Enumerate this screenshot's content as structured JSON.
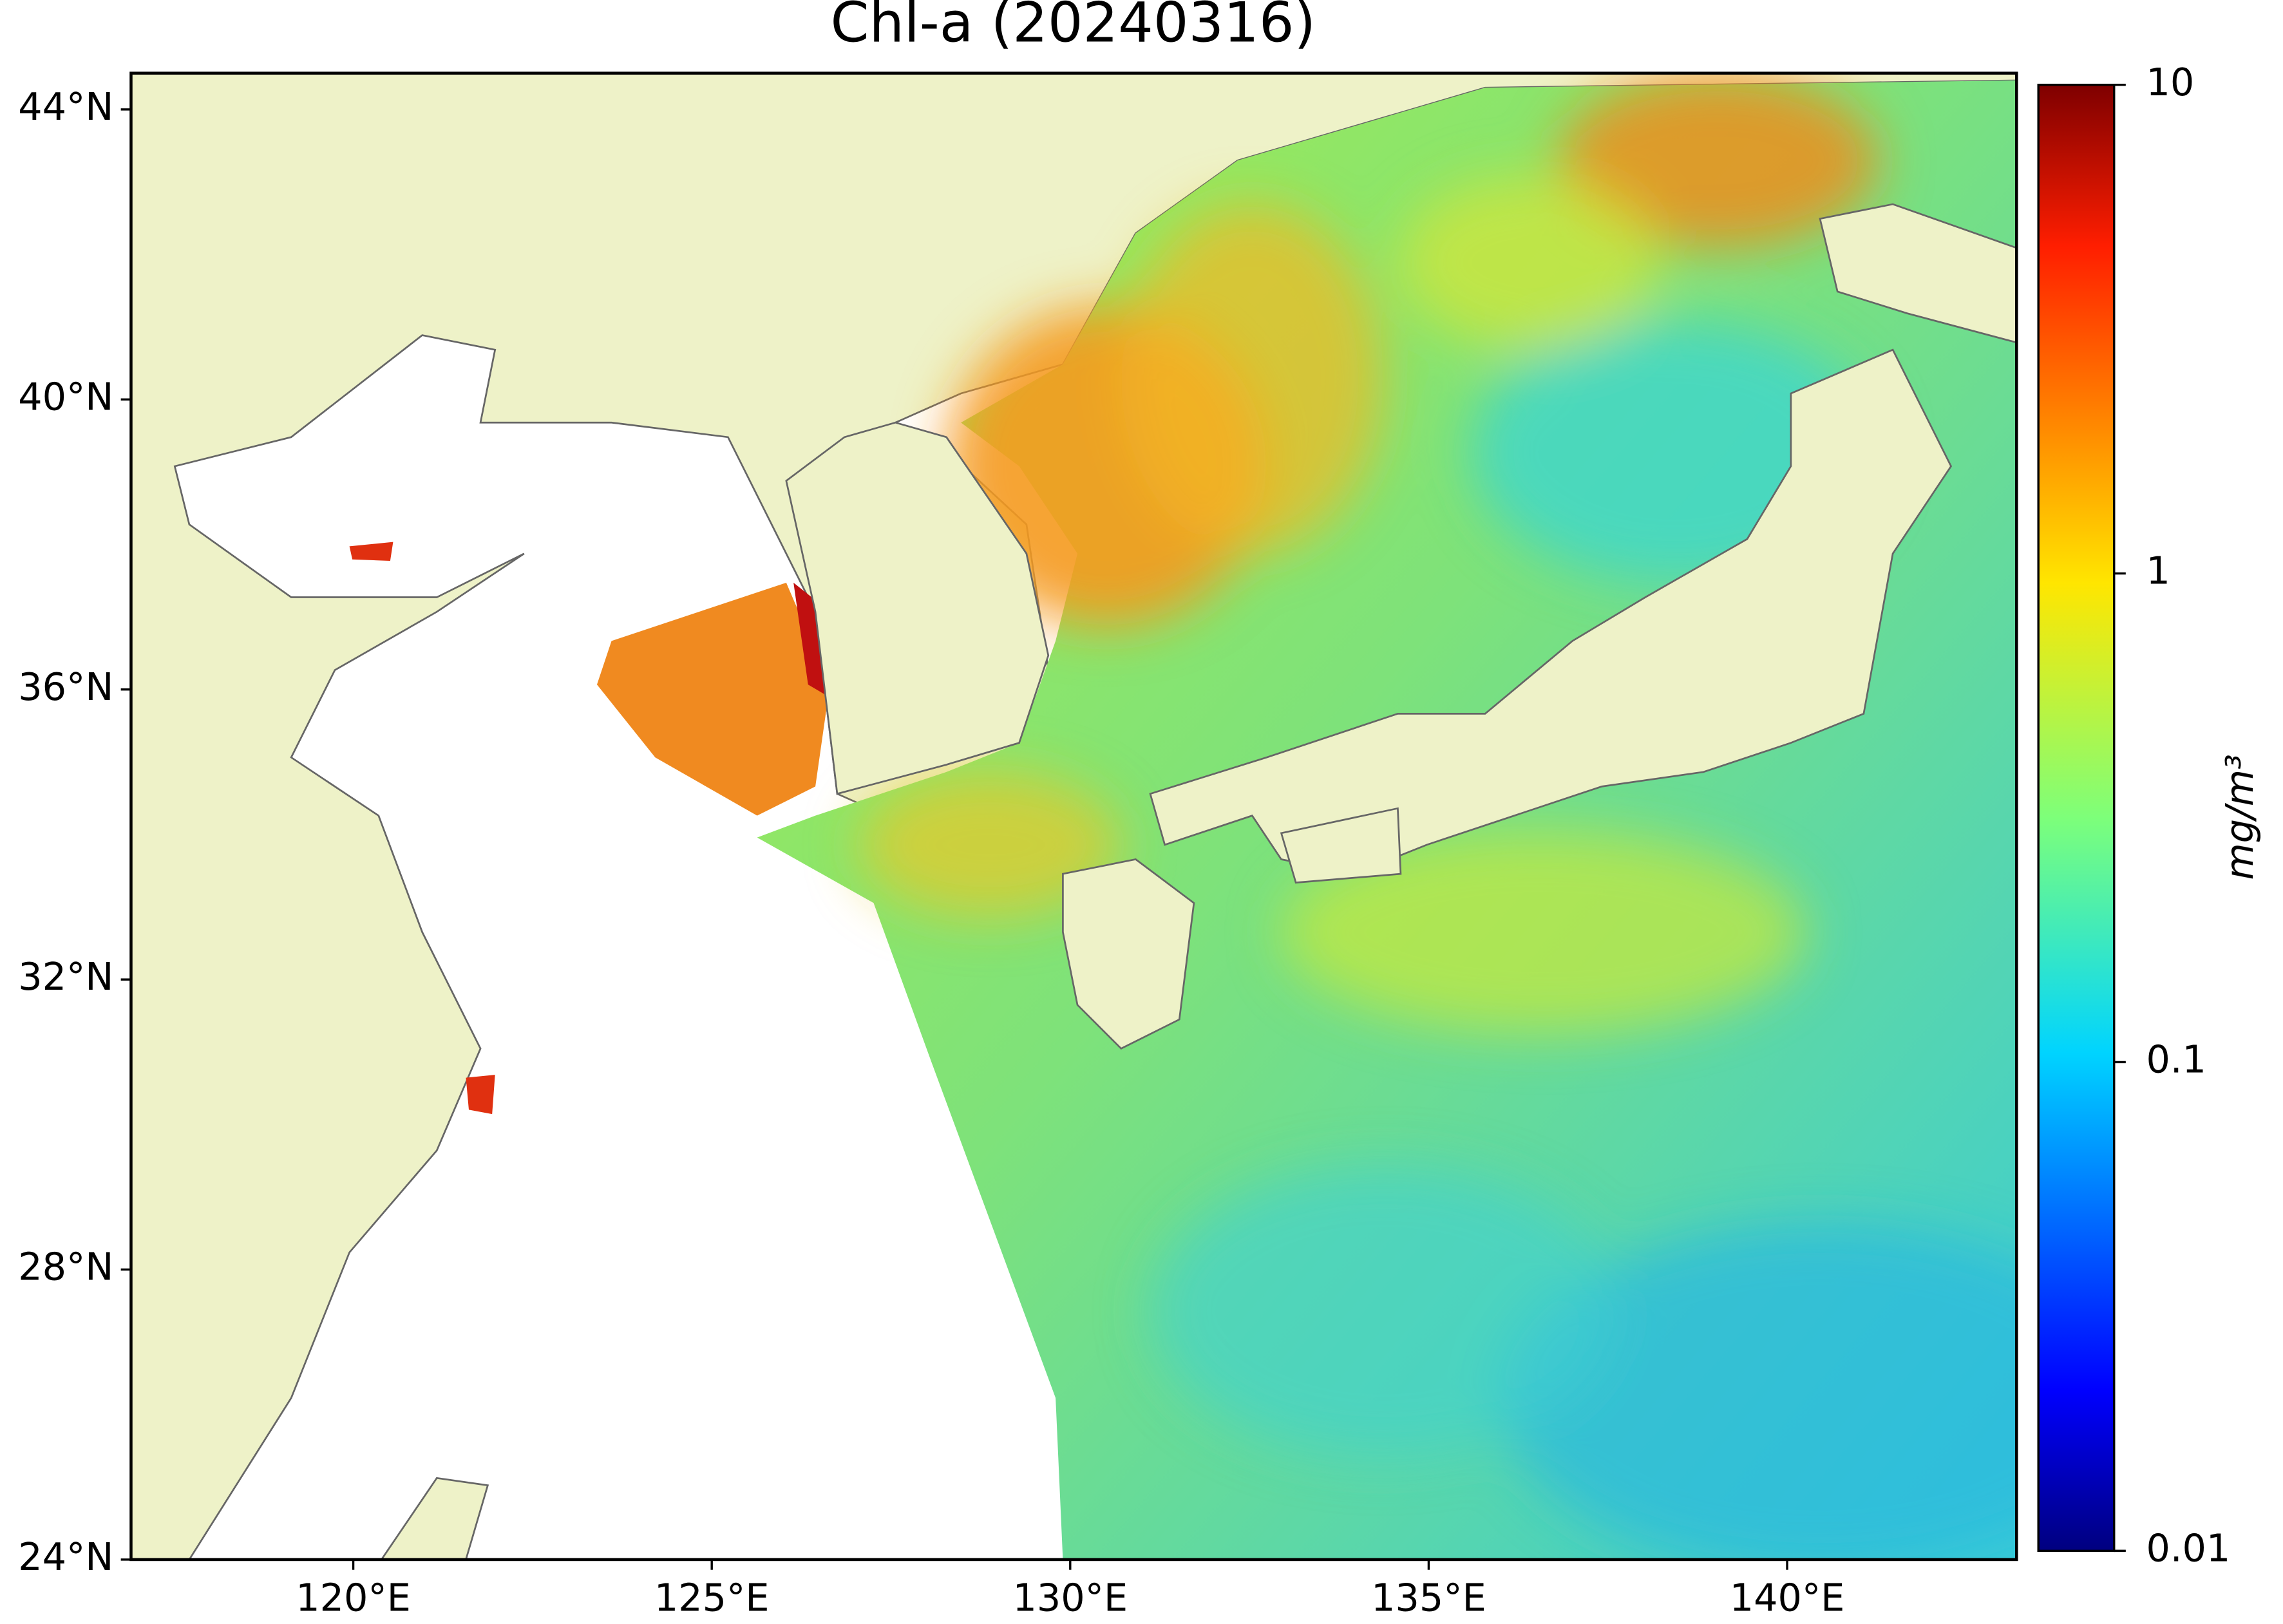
{
  "map": {
    "title": "Chl-a (20240316)",
    "xlim": [
      116.9,
      143.2
    ],
    "ylim": [
      24,
      44.5
    ],
    "xticks": [
      {
        "value": 120,
        "label": "120°E"
      },
      {
        "value": 125,
        "label": "125°E"
      },
      {
        "value": 130,
        "label": "130°E"
      },
      {
        "value": 135,
        "label": "135°E"
      },
      {
        "value": 140,
        "label": "140°E"
      }
    ],
    "yticks": [
      {
        "value": 24,
        "label": "24°N"
      },
      {
        "value": 28,
        "label": "28°N"
      },
      {
        "value": 32,
        "label": "32°N"
      },
      {
        "value": 36,
        "label": "36°N"
      },
      {
        "value": 40,
        "label": "40°N"
      },
      {
        "value": 44,
        "label": "44°N"
      }
    ],
    "colorbar": {
      "label": "mg/m³",
      "lim": [
        0.01,
        10
      ],
      "ticks": [
        0.01,
        0.1,
        1,
        10
      ],
      "log": true,
      "colormap": "jet"
    }
  }
}
